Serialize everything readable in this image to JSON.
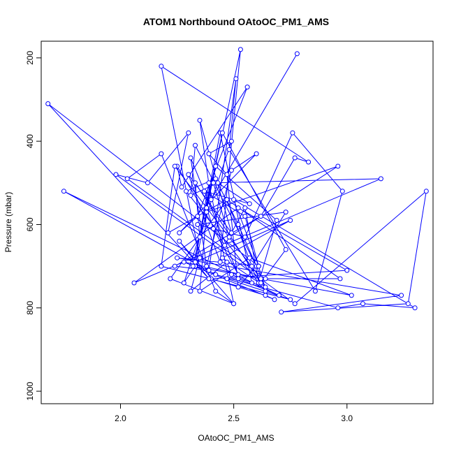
{
  "chart_data": {
    "type": "line",
    "title": "ATOM1 Northbound OAtoOC_PM1_AMS",
    "xlabel": "OAtoOC_PM1_AMS",
    "ylabel": "Pressure (mbar)",
    "xlim": [
      1.65,
      3.38
    ],
    "ylim": [
      1030,
      160
    ],
    "y_reversed": true,
    "x_ticks": [
      "2.0",
      "2.5",
      "3.0"
    ],
    "y_ticks": [
      "200",
      "400",
      "600",
      "800",
      "1000"
    ],
    "grid": false,
    "legend": "none",
    "marker": "open-circle",
    "colors": {
      "series": "#0000ff",
      "axis": "#000000"
    },
    "series": [
      {
        "x": [
          2.78,
          2.4,
          2.35,
          2.49,
          2.3,
          2.44,
          2.53,
          2.38,
          2.41,
          2.52,
          2.31,
          2.38,
          2.49,
          2.6,
          2.26,
          2.34,
          2.56,
          2.27,
          2.25,
          2.46,
          2.55,
          2.61,
          2.69,
          2.42,
          2.33,
          2.28,
          2.49,
          2.39,
          2.47,
          2.52,
          2.6,
          2.33,
          2.31,
          2.43,
          2.57,
          2.37,
          2.55,
          2.64,
          2.29,
          2.42,
          2.52,
          2.64,
          2.45,
          2.75,
          2.33,
          2.39,
          2.5,
          2.22,
          2.47,
          2.58,
          2.73,
          2.34,
          2.55,
          2.76,
          2.98,
          2.86,
          2.48,
          2.51,
          2.39,
          2.24,
          2.62,
          2.77,
          2.83,
          2.18,
          2.35,
          2.31,
          2.47,
          2.49,
          2.58,
          2.44,
          2.35,
          2.33,
          2.62,
          2.73,
          2.45,
          2.32,
          3.02,
          2.57,
          2.35,
          2.38,
          2.96,
          2.48,
          2.41,
          3.15,
          2.06,
          2.52,
          3.0,
          2.4,
          2.64,
          2.68,
          2.28,
          2.62,
          2.24,
          2.18,
          2.75,
          2.47,
          2.52,
          2.7,
          1.75,
          2.42,
          2.96,
          3.07,
          3.3,
          2.5,
          2.61,
          2.25,
          3.24,
          2.71,
          3.27,
          3.35,
          2.77,
          1.98,
          2.12,
          2.3,
          2.21,
          2.47,
          2.97,
          2.64,
          2.03,
          2.18,
          2.42,
          2.5,
          2.26,
          2.39,
          1.68,
          2.61
        ],
        "y": [
          190,
          540,
          350,
          620,
          480,
          690,
          180,
          560,
          610,
          720,
          440,
          700,
          470,
          430,
          620,
          580,
          270,
          510,
          460,
          650,
          560,
          740,
          590,
          460,
          700,
          740,
          400,
          430,
          480,
          750,
          700,
          410,
          530,
          500,
          550,
          520,
          580,
          760,
          520,
          490,
          600,
          750,
          680,
          590,
          690,
          500,
          790,
          730,
          540,
          700,
          570,
          600,
          630,
          380,
          520,
          760,
          420,
          250,
          710,
          700,
          580,
          440,
          450,
          220,
          680,
          760,
          690,
          720,
          740,
          380,
          630,
          500,
          740,
          660,
          380,
          700,
          770,
          680,
          760,
          570,
          460,
          630,
          500,
          490,
          740,
          560,
          710,
          730,
          770,
          780,
          690,
          730,
          460,
          700,
          780,
          730,
          730,
          770,
          520,
          720,
          800,
          790,
          800,
          540,
          700,
          680,
          770,
          810,
          790,
          520,
          790,
          480,
          500,
          380,
          620,
          540,
          730,
          730,
          490,
          430,
          760,
          790,
          640,
          730,
          310,
          700
        ]
      }
    ]
  }
}
